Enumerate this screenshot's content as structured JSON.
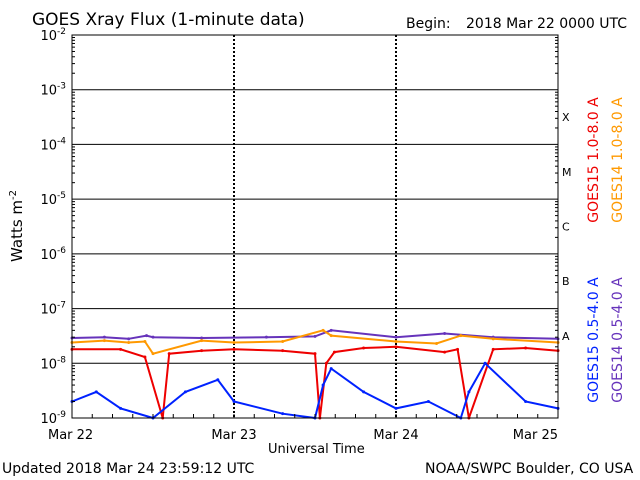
{
  "header": {
    "title": "GOES Xray Flux (1-minute data)",
    "begin_label": "Begin:",
    "begin_value": "2018 Mar 22 0000 UTC"
  },
  "footer": {
    "updated": "Updated 2018 Mar 24 23:59:12 UTC",
    "credit": "NOAA/SWPC Boulder, CO USA"
  },
  "chart_data": {
    "type": "line",
    "title": "GOES Xray Flux (1-minute data)",
    "xlabel": "Universal Time",
    "ylabel": "Watts m",
    "ylabel_sup": "-2",
    "yscale": "log",
    "ylim": [
      1e-09,
      0.01
    ],
    "xlim_days": [
      0,
      3
    ],
    "x_ticks": [
      {
        "day": 0,
        "label": "Mar 22"
      },
      {
        "day": 1,
        "label": "Mar 23"
      },
      {
        "day": 2,
        "label": "Mar 24"
      },
      {
        "day": 3,
        "label": "Mar 25"
      }
    ],
    "y_ticks": [
      {
        "exp": -2,
        "base": "10",
        "sup": "-2"
      },
      {
        "exp": -3,
        "base": "10",
        "sup": "-3"
      },
      {
        "exp": -4,
        "base": "10",
        "sup": "-4"
      },
      {
        "exp": -5,
        "base": "10",
        "sup": "-5"
      },
      {
        "exp": -6,
        "base": "10",
        "sup": "-6"
      },
      {
        "exp": -7,
        "base": "10",
        "sup": "-7"
      },
      {
        "exp": -8,
        "base": "10",
        "sup": "-8"
      },
      {
        "exp": -9,
        "base": "10",
        "sup": "-9"
      }
    ],
    "flare_classes": [
      {
        "label": "X",
        "exp": -3.5
      },
      {
        "label": "M",
        "exp": -4.5
      },
      {
        "label": "C",
        "exp": -5.5
      },
      {
        "label": "B",
        "exp": -6.5
      },
      {
        "label": "A",
        "exp": -7.5
      }
    ],
    "grid": true,
    "legend_placement": "right",
    "series": [
      {
        "name": "GOES14 0.5-4.0 A",
        "color": "#6633bb",
        "x": [
          0,
          0.2,
          0.35,
          0.46,
          0.5,
          0.8,
          1.2,
          1.5,
          1.6,
          2.0,
          2.3,
          2.6,
          3.0
        ],
        "y": [
          2.9e-08,
          3e-08,
          2.8e-08,
          3.2e-08,
          3e-08,
          2.9e-08,
          3e-08,
          3.1e-08,
          4e-08,
          3e-08,
          3.5e-08,
          3e-08,
          2.8e-08
        ]
      },
      {
        "name": "GOES14 1.0-8.0 A",
        "color": "#ff9900",
        "x": [
          0,
          0.2,
          0.35,
          0.45,
          0.5,
          0.8,
          1.0,
          1.3,
          1.55,
          1.6,
          2.0,
          2.25,
          2.4,
          2.6,
          3.0
        ],
        "y": [
          2.4e-08,
          2.6e-08,
          2.4e-08,
          2.5e-08,
          1.5e-08,
          2.6e-08,
          2.4e-08,
          2.5e-08,
          4e-08,
          3.2e-08,
          2.5e-08,
          2.3e-08,
          3.2e-08,
          2.8e-08,
          2.4e-08
        ]
      },
      {
        "name": "GOES15 1.0-8.0 A",
        "color": "#ee0000",
        "x": [
          0,
          0.3,
          0.45,
          0.56,
          0.6,
          0.8,
          1.0,
          1.3,
          1.5,
          1.53,
          1.57,
          1.62,
          1.8,
          2.0,
          2.3,
          2.38,
          2.45,
          2.6,
          2.8,
          3.0
        ],
        "y": [
          1.8e-08,
          1.8e-08,
          1.3e-08,
          1e-09,
          1.5e-08,
          1.7e-08,
          1.8e-08,
          1.7e-08,
          1.5e-08,
          1e-09,
          1e-08,
          1.6e-08,
          1.9e-08,
          2e-08,
          1.6e-08,
          1.8e-08,
          1e-09,
          1.8e-08,
          1.9e-08,
          1.7e-08
        ]
      },
      {
        "name": "GOES15 0.5-4.0 A",
        "color": "#0022ff",
        "x": [
          0,
          0.15,
          0.3,
          0.5,
          0.7,
          0.9,
          1.0,
          1.3,
          1.5,
          1.55,
          1.6,
          1.8,
          2.0,
          2.2,
          2.4,
          2.45,
          2.55,
          2.8,
          3.0
        ],
        "y": [
          2e-09,
          3e-09,
          1.5e-09,
          1e-09,
          3e-09,
          5e-09,
          2e-09,
          1.2e-09,
          1e-09,
          4e-09,
          8e-09,
          3e-09,
          1.5e-09,
          2e-09,
          1e-09,
          3e-09,
          1e-08,
          2e-09,
          1.5e-09
        ]
      }
    ]
  }
}
